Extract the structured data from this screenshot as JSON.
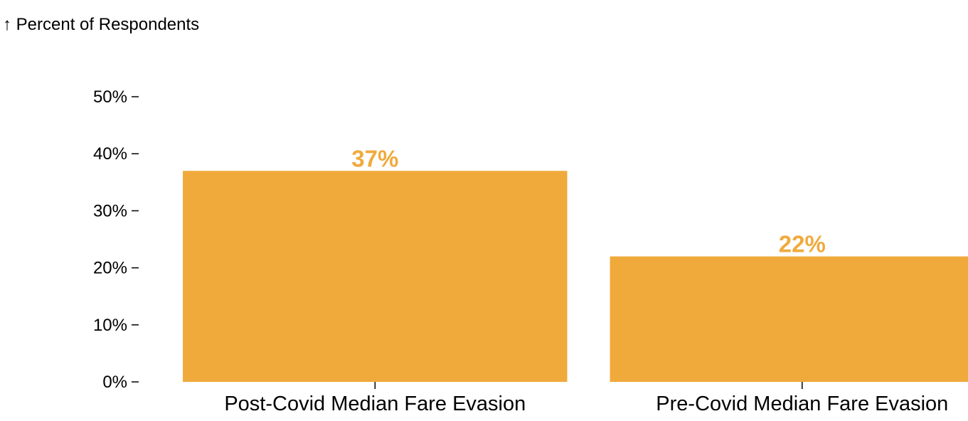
{
  "chart_data": {
    "type": "bar",
    "ylabel": "↑ Percent of Respondents",
    "categories": [
      "Post-Covid Median Fare Evasion",
      "Pre-Covid Median Fare Evasion"
    ],
    "values": [
      37,
      22
    ],
    "value_labels": [
      "37%",
      "22%"
    ],
    "y_ticks": [
      0,
      10,
      20,
      30,
      40,
      50
    ],
    "y_tick_labels": [
      "0%",
      "10%",
      "20%",
      "30%",
      "40%",
      "50%"
    ],
    "ylim": [
      0,
      50
    ],
    "grid": false,
    "legend": "none",
    "bar_color": "#F0AA3C",
    "label_color": "#F0AA3C"
  }
}
